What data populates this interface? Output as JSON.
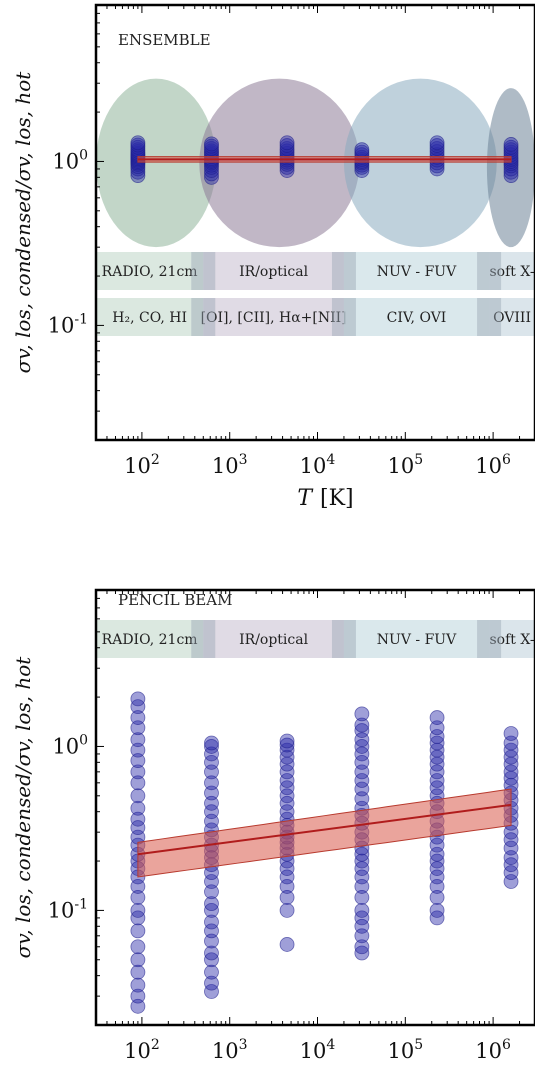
{
  "chart_data": [
    {
      "type": "scatter",
      "title": "ENSEMBLE",
      "xlabel_main": "T",
      "xlabel_unit": "[K]",
      "ylabel": "σv, los, condensed/σv, los, hot",
      "xscale": "log",
      "yscale": "log",
      "xlim": [
        30,
        3000000
      ],
      "ylim": [
        0.02,
        9
      ],
      "xticks": [
        {
          "value": 100,
          "base": "10",
          "exp": "2"
        },
        {
          "value": 1000,
          "base": "10",
          "exp": "3"
        },
        {
          "value": 10000,
          "base": "10",
          "exp": "4"
        },
        {
          "value": 100000,
          "base": "10",
          "exp": "5"
        },
        {
          "value": 1000000,
          "base": "10",
          "exp": "6"
        }
      ],
      "yticks": [
        {
          "value": 1.0,
          "base": "10",
          "exp": "0"
        },
        {
          "value": 0.1,
          "base": "10",
          "exp": "-1"
        }
      ],
      "bands_row1": [
        {
          "label": "RADIO, 21cm",
          "x0": 30,
          "x1": 500
        },
        {
          "label": "IR/optical",
          "x0": 500,
          "x1": 20000
        },
        {
          "label": "NUV - FUV",
          "x0": 20000,
          "x1": 900000
        },
        {
          "label": "soft X-",
          "x0": 900000,
          "x1": 3000000
        }
      ],
      "bands_row2": [
        {
          "label": "H₂, CO, HI",
          "x0": 30,
          "x1": 500
        },
        {
          "label": "[OI], [CII], Hα+[NII]",
          "x0": 500,
          "x1": 20000
        },
        {
          "label": "CIV, OVI",
          "x0": 20000,
          "x1": 900000
        },
        {
          "label": "OVIII",
          "x0": 900000,
          "x1": 3000000
        }
      ],
      "ellipses": [
        {
          "x0": 30,
          "x1": 700,
          "y0": 0.3,
          "y1": 3.2,
          "color": "#8fb59a"
        },
        {
          "x0": 450,
          "x1": 30000,
          "y0": 0.3,
          "y1": 3.2,
          "color": "#8e7b98"
        },
        {
          "x0": 20000,
          "x1": 1100000,
          "y0": 0.3,
          "y1": 3.2,
          "color": "#8aabc0"
        },
        {
          "x0": 850000,
          "x1": 3000000,
          "y0": 0.3,
          "y1": 2.8,
          "color": "#6d8398"
        }
      ],
      "series": [
        {
          "x": 90,
          "y": [
            0.82,
            0.86,
            0.9,
            0.93,
            0.96,
            0.98,
            1.0,
            1.02,
            1.04,
            1.06,
            1.08,
            1.1,
            1.12,
            1.15,
            1.18,
            1.22,
            1.26,
            1.3
          ]
        },
        {
          "x": 620,
          "y": [
            0.8,
            0.84,
            0.88,
            0.92,
            0.95,
            0.98,
            1.0,
            1.02,
            1.04,
            1.07,
            1.1,
            1.13,
            1.16,
            1.2,
            1.24,
            1.28
          ]
        },
        {
          "x": 4500,
          "y": [
            0.88,
            0.92,
            0.96,
            0.99,
            1.02,
            1.05,
            1.08,
            1.12,
            1.16,
            1.2,
            1.25,
            1.3
          ]
        },
        {
          "x": 32000,
          "y": [
            0.88,
            0.92,
            0.95,
            0.98,
            1.0,
            1.03,
            1.06,
            1.1,
            1.14,
            1.18
          ]
        },
        {
          "x": 230000,
          "y": [
            0.9,
            0.94,
            0.98,
            1.02,
            1.06,
            1.1,
            1.15,
            1.2,
            1.25,
            1.3
          ]
        },
        {
          "x": 1600000,
          "y": [
            0.82,
            0.86,
            0.9,
            0.94,
            0.97,
            1.0,
            1.03,
            1.06,
            1.1,
            1.14,
            1.18,
            1.22,
            1.27
          ]
        }
      ],
      "fit": {
        "x0": 90,
        "x1": 1600000,
        "y0": 1.03,
        "y1": 1.03,
        "lo0": 0.99,
        "lo1": 0.99,
        "hi0": 1.07,
        "hi1": 1.07
      }
    },
    {
      "type": "scatter",
      "title": "PENCIL BEAM",
      "xlabel_main": "T",
      "xlabel_unit": "[K]",
      "ylabel": "σv, los, condensed/σv, los, hot",
      "xscale": "log",
      "yscale": "log",
      "xlim": [
        30,
        3000000
      ],
      "ylim": [
        0.02,
        9
      ],
      "xticks": [
        {
          "value": 100,
          "base": "10",
          "exp": "2"
        },
        {
          "value": 1000,
          "base": "10",
          "exp": "3"
        },
        {
          "value": 10000,
          "base": "10",
          "exp": "4"
        },
        {
          "value": 100000,
          "base": "10",
          "exp": "5"
        },
        {
          "value": 1000000,
          "base": "10",
          "exp": "6"
        }
      ],
      "yticks": [
        {
          "value": 1.0,
          "base": "10",
          "exp": "0"
        },
        {
          "value": 0.1,
          "base": "10",
          "exp": "-1"
        }
      ],
      "bands_row1": [
        {
          "label": "RADIO, 21cm",
          "x0": 30,
          "x1": 500
        },
        {
          "label": "IR/optical",
          "x0": 500,
          "x1": 20000
        },
        {
          "label": "NUV - FUV",
          "x0": 20000,
          "x1": 900000
        },
        {
          "label": "soft X-",
          "x0": 900000,
          "x1": 3000000
        }
      ],
      "series": [
        {
          "x": 90,
          "y": [
            0.026,
            0.03,
            0.035,
            0.042,
            0.05,
            0.06,
            0.075,
            0.09,
            0.1,
            0.12,
            0.14,
            0.16,
            0.18,
            0.2,
            0.22,
            0.25,
            0.28,
            0.32,
            0.36,
            0.42,
            0.5,
            0.6,
            0.7,
            0.82,
            0.95,
            1.1,
            1.3,
            1.5,
            1.75,
            1.95
          ]
        },
        {
          "x": 620,
          "y": [
            0.032,
            0.036,
            0.042,
            0.05,
            0.055,
            0.065,
            0.075,
            0.085,
            0.1,
            0.11,
            0.13,
            0.15,
            0.17,
            0.19,
            0.21,
            0.23,
            0.25,
            0.28,
            0.31,
            0.35,
            0.4,
            0.45,
            0.52,
            0.6,
            0.7,
            0.8,
            0.9,
            1.0,
            1.05
          ]
        },
        {
          "x": 4500,
          "y": [
            0.062,
            0.1,
            0.12,
            0.14,
            0.16,
            0.18,
            0.2,
            0.22,
            0.24,
            0.26,
            0.28,
            0.3,
            0.33,
            0.36,
            0.4,
            0.45,
            0.5,
            0.56,
            0.62,
            0.7,
            0.78,
            0.86,
            0.95,
            1.02,
            1.08
          ]
        },
        {
          "x": 32000,
          "y": [
            0.055,
            0.06,
            0.07,
            0.08,
            0.09,
            0.1,
            0.12,
            0.14,
            0.16,
            0.18,
            0.2,
            0.22,
            0.24,
            0.27,
            0.3,
            0.34,
            0.38,
            0.42,
            0.48,
            0.55,
            0.62,
            0.7,
            0.8,
            0.9,
            1.0,
            1.1,
            1.25,
            1.35,
            1.58
          ]
        },
        {
          "x": 230000,
          "y": [
            0.09,
            0.1,
            0.12,
            0.14,
            0.16,
            0.18,
            0.2,
            0.22,
            0.25,
            0.28,
            0.31,
            0.35,
            0.4,
            0.45,
            0.5,
            0.56,
            0.62,
            0.7,
            0.78,
            0.86,
            0.95,
            1.05,
            1.15,
            1.3,
            1.5
          ]
        },
        {
          "x": 1600000,
          "y": [
            0.15,
            0.17,
            0.19,
            0.21,
            0.24,
            0.27,
            0.3,
            0.34,
            0.38,
            0.42,
            0.47,
            0.52,
            0.58,
            0.64,
            0.7,
            0.78,
            0.86,
            0.95,
            1.05,
            1.2
          ]
        }
      ],
      "fit": {
        "x0": 90,
        "x1": 1600000,
        "y0": 0.22,
        "y1": 0.44,
        "lo0": 0.16,
        "lo1": 0.33,
        "hi0": 0.26,
        "hi1": 0.55
      }
    }
  ]
}
